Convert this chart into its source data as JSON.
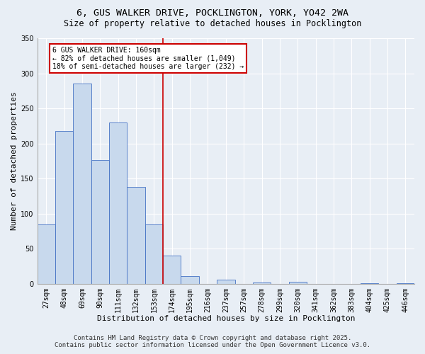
{
  "title_line1": "6, GUS WALKER DRIVE, POCKLINGTON, YORK, YO42 2WA",
  "title_line2": "Size of property relative to detached houses in Pocklington",
  "xlabel": "Distribution of detached houses by size in Pocklington",
  "ylabel": "Number of detached properties",
  "categories": [
    "27sqm",
    "48sqm",
    "69sqm",
    "90sqm",
    "111sqm",
    "132sqm",
    "153sqm",
    "174sqm",
    "195sqm",
    "216sqm",
    "237sqm",
    "257sqm",
    "278sqm",
    "299sqm",
    "320sqm",
    "341sqm",
    "362sqm",
    "383sqm",
    "404sqm",
    "425sqm",
    "446sqm"
  ],
  "values": [
    85,
    218,
    285,
    176,
    230,
    138,
    85,
    40,
    11,
    0,
    6,
    0,
    2,
    0,
    3,
    0,
    0,
    0,
    1,
    0,
    1
  ],
  "bar_color": "#c8d9ed",
  "bar_edge_color": "#4472c4",
  "background_color": "#e8eef5",
  "grid_color": "#ffffff",
  "vline_color": "#cc0000",
  "annotation_title": "6 GUS WALKER DRIVE: 160sqm",
  "annotation_line1": "← 82% of detached houses are smaller (1,049)",
  "annotation_line2": "18% of semi-detached houses are larger (232) →",
  "annotation_box_color": "#cc0000",
  "footer_line1": "Contains HM Land Registry data © Crown copyright and database right 2025.",
  "footer_line2": "Contains public sector information licensed under the Open Government Licence v3.0.",
  "ylim": [
    0,
    350
  ],
  "yticks": [
    0,
    50,
    100,
    150,
    200,
    250,
    300,
    350
  ],
  "title_fontsize": 9.5,
  "subtitle_fontsize": 8.5,
  "axis_label_fontsize": 8,
  "tick_fontsize": 7,
  "annotation_fontsize": 7,
  "footer_fontsize": 6.5
}
